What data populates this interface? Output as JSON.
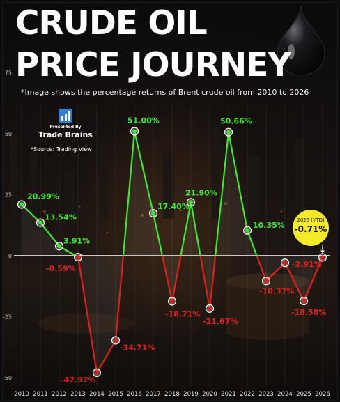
{
  "header": {
    "title_line1": "CRUDE OIL",
    "title_line2": "PRICE JOURNEY",
    "subtitle": "*Image shows the percentage returns of Brent crude oil from 2010 to 2026"
  },
  "brand": {
    "presented_by": "Presented By",
    "name": "Trade Brains",
    "source": "*Source: Trading View"
  },
  "ytd_badge": {
    "label": "2026 (YTD)",
    "value": "-0.71%"
  },
  "colors": {
    "positive": "#3ee832",
    "negative": "#e0201c",
    "zero_line": "#ffffff",
    "badge": "#f4ea2a"
  },
  "chart_data": {
    "type": "line",
    "x": [
      "2010",
      "2011",
      "2012",
      "2013",
      "2014",
      "2015",
      "2016",
      "2017",
      "2018",
      "2019",
      "2020",
      "2021",
      "2022",
      "2023",
      "2024",
      "2025",
      "2026"
    ],
    "values": [
      20.99,
      13.54,
      3.91,
      -0.59,
      -47.97,
      -34.71,
      51.0,
      17.4,
      -18.71,
      21.9,
      -21.67,
      50.66,
      10.35,
      -10.37,
      -2.91,
      -18.58,
      -0.71
    ],
    "labels": [
      "20.99%",
      "13.54%",
      "3.91%",
      "-0.59%",
      "-47.97%",
      "-34.71%",
      "51.00%",
      "17.40%",
      "-18.71%",
      "21.90%",
      "-21.67%",
      "50.66%",
      "10.35%",
      "-10.37%",
      "-2.91%",
      "-18.58%",
      ""
    ],
    "y_ticks": [
      "75",
      "50",
      "25",
      "0",
      "-25",
      "-50"
    ],
    "y_tick_values": [
      75,
      50,
      25,
      0,
      -25,
      -50
    ],
    "ylim": [
      -50,
      75
    ]
  }
}
